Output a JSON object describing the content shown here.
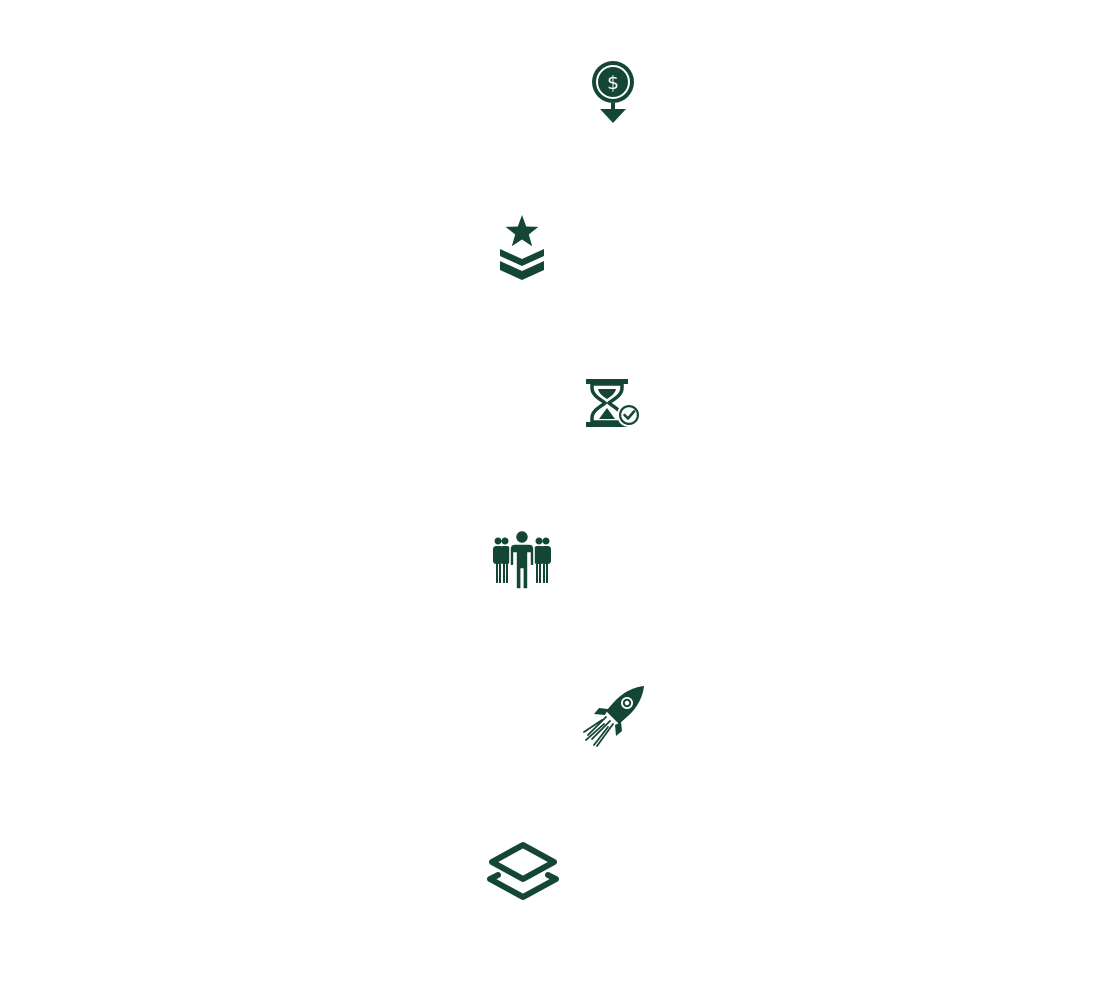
{
  "accent_color": "#144634",
  "background_color": "#ffffff",
  "icons": [
    {
      "name": "price-drop-icon"
    },
    {
      "name": "rank-chevron-icon"
    },
    {
      "name": "hourglass-check-icon"
    },
    {
      "name": "team-group-icon"
    },
    {
      "name": "rocket-launch-icon"
    },
    {
      "name": "layers-icon"
    }
  ]
}
